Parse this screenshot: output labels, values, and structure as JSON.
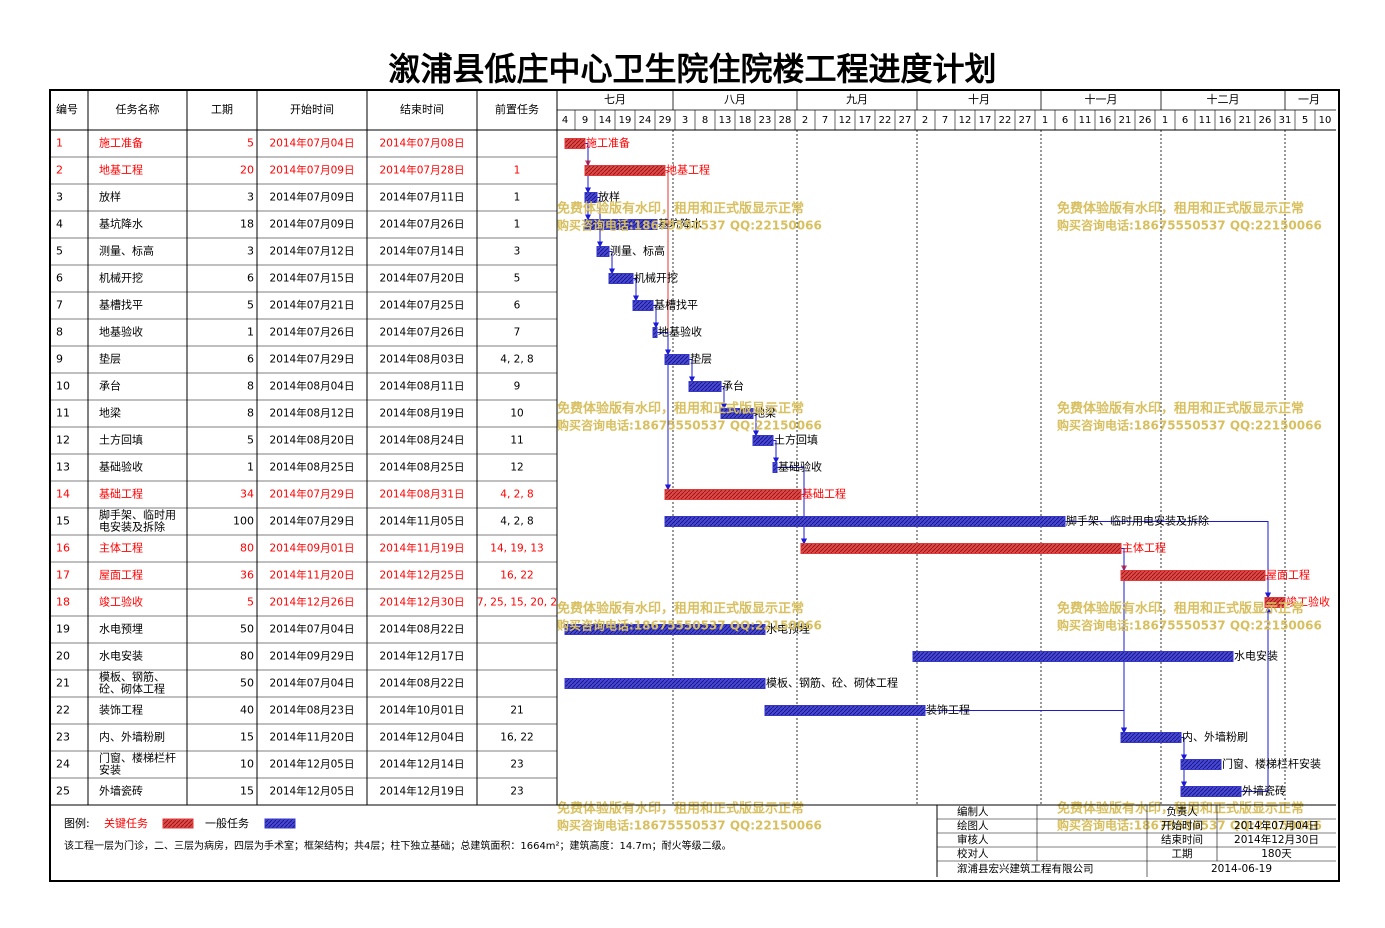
{
  "title": "溆浦县低庄中心卫生院住院楼工程进度计划",
  "table": {
    "headers": [
      "编号",
      "任务名称",
      "工期",
      "开始时间",
      "结束时间",
      "前置任务"
    ]
  },
  "chart_data": {
    "type": "gantt",
    "timeline": {
      "months": [
        {
          "label": "七月",
          "start": "2014-07-01",
          "end": "2014-07-31"
        },
        {
          "label": "八月",
          "start": "2014-07-31",
          "end": "2014-08-31"
        },
        {
          "label": "九月",
          "start": "2014-08-31",
          "end": "2014-09-30"
        },
        {
          "label": "十月",
          "start": "2014-09-30",
          "end": "2014-10-31"
        },
        {
          "label": "十一月",
          "start": "2014-10-31",
          "end": "2014-11-30"
        },
        {
          "label": "十二月",
          "start": "2014-11-30",
          "end": "2014-12-31"
        },
        {
          "label": "一月",
          "start": "2014-12-31",
          "end": "2015-01-12"
        }
      ],
      "ticks": [
        {
          "label": "4",
          "date": "2014-07-04"
        },
        {
          "label": "9",
          "date": "2014-07-09"
        },
        {
          "label": "14",
          "date": "2014-07-14"
        },
        {
          "label": "19",
          "date": "2014-07-19"
        },
        {
          "label": "24",
          "date": "2014-07-24"
        },
        {
          "label": "29",
          "date": "2014-07-29"
        },
        {
          "label": "3",
          "date": "2014-08-03"
        },
        {
          "label": "8",
          "date": "2014-08-08"
        },
        {
          "label": "13",
          "date": "2014-08-13"
        },
        {
          "label": "18",
          "date": "2014-08-18"
        },
        {
          "label": "23",
          "date": "2014-08-23"
        },
        {
          "label": "28",
          "date": "2014-08-28"
        },
        {
          "label": "2",
          "date": "2014-09-02"
        },
        {
          "label": "7",
          "date": "2014-09-07"
        },
        {
          "label": "12",
          "date": "2014-09-12"
        },
        {
          "label": "17",
          "date": "2014-09-17"
        },
        {
          "label": "22",
          "date": "2014-09-22"
        },
        {
          "label": "27",
          "date": "2014-09-27"
        },
        {
          "label": "2",
          "date": "2014-10-02"
        },
        {
          "label": "7",
          "date": "2014-10-07"
        },
        {
          "label": "12",
          "date": "2014-10-12"
        },
        {
          "label": "17",
          "date": "2014-10-17"
        },
        {
          "label": "22",
          "date": "2014-10-22"
        },
        {
          "label": "27",
          "date": "2014-10-27"
        },
        {
          "label": "1",
          "date": "2014-11-01"
        },
        {
          "label": "6",
          "date": "2014-11-06"
        },
        {
          "label": "11",
          "date": "2014-11-11"
        },
        {
          "label": "16",
          "date": "2014-11-16"
        },
        {
          "label": "21",
          "date": "2014-11-21"
        },
        {
          "label": "26",
          "date": "2014-11-26"
        },
        {
          "label": "1",
          "date": "2014-12-01"
        },
        {
          "label": "6",
          "date": "2014-12-06"
        },
        {
          "label": "11",
          "date": "2014-12-11"
        },
        {
          "label": "16",
          "date": "2014-12-16"
        },
        {
          "label": "21",
          "date": "2014-12-21"
        },
        {
          "label": "26",
          "date": "2014-12-26"
        },
        {
          "label": "31",
          "date": "2014-12-31"
        },
        {
          "label": "5",
          "date": "2015-01-05"
        },
        {
          "label": "10",
          "date": "2015-01-10"
        }
      ]
    },
    "tasks": [
      {
        "id": "1",
        "name": "施工准备",
        "duration": 5,
        "start": "2014-07-04",
        "finish": "2014-07-08",
        "start_text": "2014年07月04日",
        "finish_text": "2014年07月08日",
        "predecessors": "",
        "critical": true
      },
      {
        "id": "2",
        "name": "地基工程",
        "duration": 20,
        "start": "2014-07-09",
        "finish": "2014-07-28",
        "start_text": "2014年07月09日",
        "finish_text": "2014年07月28日",
        "predecessors": "1",
        "critical": true
      },
      {
        "id": "3",
        "name": "放样",
        "duration": 3,
        "start": "2014-07-09",
        "finish": "2014-07-11",
        "start_text": "2014年07月09日",
        "finish_text": "2014年07月11日",
        "predecessors": "1",
        "critical": false
      },
      {
        "id": "4",
        "name": "基坑降水",
        "duration": 18,
        "start": "2014-07-09",
        "finish": "2014-07-26",
        "start_text": "2014年07月09日",
        "finish_text": "2014年07月26日",
        "predecessors": "1",
        "critical": false
      },
      {
        "id": "5",
        "name": "测量、标高",
        "duration": 3,
        "start": "2014-07-12",
        "finish": "2014-07-14",
        "start_text": "2014年07月12日",
        "finish_text": "2014年07月14日",
        "predecessors": "3",
        "critical": false
      },
      {
        "id": "6",
        "name": "机械开挖",
        "duration": 6,
        "start": "2014-07-15",
        "finish": "2014-07-20",
        "start_text": "2014年07月15日",
        "finish_text": "2014年07月20日",
        "predecessors": "5",
        "critical": false
      },
      {
        "id": "7",
        "name": "基槽找平",
        "duration": 5,
        "start": "2014-07-21",
        "finish": "2014-07-25",
        "start_text": "2014年07月21日",
        "finish_text": "2014年07月25日",
        "predecessors": "6",
        "critical": false
      },
      {
        "id": "8",
        "name": "地基验收",
        "duration": 1,
        "start": "2014-07-26",
        "finish": "2014-07-26",
        "start_text": "2014年07月26日",
        "finish_text": "2014年07月26日",
        "predecessors": "7",
        "critical": false
      },
      {
        "id": "9",
        "name": "垫层",
        "duration": 6,
        "start": "2014-07-29",
        "finish": "2014-08-03",
        "start_text": "2014年07月29日",
        "finish_text": "2014年08月03日",
        "predecessors": "4, 2, 8",
        "critical": false
      },
      {
        "id": "10",
        "name": "承台",
        "duration": 8,
        "start": "2014-08-04",
        "finish": "2014-08-11",
        "start_text": "2014年08月04日",
        "finish_text": "2014年08月11日",
        "predecessors": "9",
        "critical": false
      },
      {
        "id": "11",
        "name": "地梁",
        "duration": 8,
        "start": "2014-08-12",
        "finish": "2014-08-19",
        "start_text": "2014年08月12日",
        "finish_text": "2014年08月19日",
        "predecessors": "10",
        "critical": false
      },
      {
        "id": "12",
        "name": "土方回填",
        "duration": 5,
        "start": "2014-08-20",
        "finish": "2014-08-24",
        "start_text": "2014年08月20日",
        "finish_text": "2014年08月24日",
        "predecessors": "11",
        "critical": false
      },
      {
        "id": "13",
        "name": "基础验收",
        "duration": 1,
        "start": "2014-08-25",
        "finish": "2014-08-25",
        "start_text": "2014年08月25日",
        "finish_text": "2014年08月25日",
        "predecessors": "12",
        "critical": false
      },
      {
        "id": "14",
        "name": "基础工程",
        "duration": 34,
        "start": "2014-07-29",
        "finish": "2014-08-31",
        "start_text": "2014年07月29日",
        "finish_text": "2014年08月31日",
        "predecessors": "4, 2, 8",
        "critical": true
      },
      {
        "id": "15",
        "name": "脚手架、临时用电安装及拆除",
        "name_lines": [
          "脚手架、临时用",
          "电安装及拆除"
        ],
        "duration": 100,
        "start": "2014-07-29",
        "finish": "2014-11-05",
        "start_text": "2014年07月29日",
        "finish_text": "2014年11月05日",
        "predecessors": "4, 2, 8",
        "critical": false
      },
      {
        "id": "16",
        "name": "主体工程",
        "duration": 80,
        "start": "2014-09-01",
        "finish": "2014-11-19",
        "start_text": "2014年09月01日",
        "finish_text": "2014年11月19日",
        "predecessors": "14, 19, 13",
        "critical": true
      },
      {
        "id": "17",
        "name": "屋面工程",
        "duration": 36,
        "start": "2014-11-20",
        "finish": "2014-12-25",
        "start_text": "2014年11月20日",
        "finish_text": "2014年12月25日",
        "predecessors": "16, 22",
        "critical": true
      },
      {
        "id": "18",
        "name": "竣工验收",
        "duration": 5,
        "start": "2014-12-26",
        "finish": "2014-12-30",
        "start_text": "2014年12月26日",
        "finish_text": "2014年12月30日",
        "predecessors": "7, 25, 15, 20, 2",
        "critical": true
      },
      {
        "id": "19",
        "name": "水电预埋",
        "duration": 50,
        "start": "2014-07-04",
        "finish": "2014-08-22",
        "start_text": "2014年07月04日",
        "finish_text": "2014年08月22日",
        "predecessors": "",
        "critical": false
      },
      {
        "id": "20",
        "name": "水电安装",
        "duration": 80,
        "start": "2014-09-29",
        "finish": "2014-12-17",
        "start_text": "2014年09月29日",
        "finish_text": "2014年12月17日",
        "predecessors": "",
        "critical": false
      },
      {
        "id": "21",
        "name": "模板、钢筋、砼、砌体工程",
        "name_lines": [
          "模板、钢筋、",
          "砼、砌体工程"
        ],
        "duration": 50,
        "start": "2014-07-04",
        "finish": "2014-08-22",
        "start_text": "2014年07月04日",
        "finish_text": "2014年08月22日",
        "predecessors": "",
        "critical": false
      },
      {
        "id": "22",
        "name": "装饰工程",
        "duration": 40,
        "start": "2014-08-23",
        "finish": "2014-10-01",
        "start_text": "2014年08月23日",
        "finish_text": "2014年10月01日",
        "predecessors": "21",
        "critical": false
      },
      {
        "id": "23",
        "name": "内、外墙粉刷",
        "duration": 15,
        "start": "2014-11-20",
        "finish": "2014-12-04",
        "start_text": "2014年11月20日",
        "finish_text": "2014年12月04日",
        "predecessors": "16, 22",
        "critical": false
      },
      {
        "id": "24",
        "name": "门窗、楼梯栏杆安装",
        "name_lines": [
          "门窗、楼梯栏杆",
          "安装"
        ],
        "duration": 10,
        "start": "2014-12-05",
        "finish": "2014-12-14",
        "start_text": "2014年12月05日",
        "finish_text": "2014年12月14日",
        "predecessors": "23",
        "critical": false
      },
      {
        "id": "25",
        "name": "外墙瓷砖",
        "duration": 15,
        "start": "2014-12-05",
        "finish": "2014-12-19",
        "start_text": "2014年12月05日",
        "finish_text": "2014年12月19日",
        "predecessors": "23",
        "critical": false
      }
    ],
    "links": [
      [
        1,
        2
      ],
      [
        1,
        3
      ],
      [
        1,
        4
      ],
      [
        3,
        5
      ],
      [
        5,
        6
      ],
      [
        6,
        7
      ],
      [
        7,
        8
      ],
      [
        2,
        9
      ],
      [
        9,
        10
      ],
      [
        10,
        11
      ],
      [
        11,
        12
      ],
      [
        12,
        13
      ],
      [
        2,
        14
      ],
      [
        8,
        14
      ],
      [
        14,
        16
      ],
      [
        13,
        16
      ],
      [
        16,
        17
      ],
      [
        17,
        18
      ],
      [
        15,
        18
      ],
      [
        16,
        23
      ],
      [
        23,
        24
      ],
      [
        23,
        25
      ],
      [
        22,
        23
      ],
      [
        25,
        18
      ]
    ],
    "colors": {
      "critical": "#e03a3a",
      "normal": "#3737c8",
      "link": "#1a1ad8",
      "critical_text": "#ff0000"
    }
  },
  "legend": {
    "label": "图例:",
    "critical_label": "关键任务",
    "normal_label": "一般任务"
  },
  "note": "该工程一层为门诊，二、三层为病房，四层为手术室；框架结构；共4层；柱下独立基础；总建筑面积：1664m²；建筑高度：14.7m；耐火等级二级。",
  "info_block": {
    "left_labels": [
      "编制人",
      "绘图人",
      "审核人",
      "校对人"
    ],
    "company": "溆浦县宏兴建筑工程有限公司",
    "right_rows": [
      {
        "label": "负责人",
        "value": ""
      },
      {
        "label": "开始时间",
        "value": "2014年07月04日"
      },
      {
        "label": "结束时间",
        "value": "2014年12月30日"
      },
      {
        "label": "工期",
        "value": "180天"
      }
    ],
    "date": "2014-06-19"
  },
  "watermark": {
    "line1": "免费体验版有水印，租用和正式版显示正常",
    "line2": "购买咨询电话:18675550537 QQ:22150066"
  }
}
